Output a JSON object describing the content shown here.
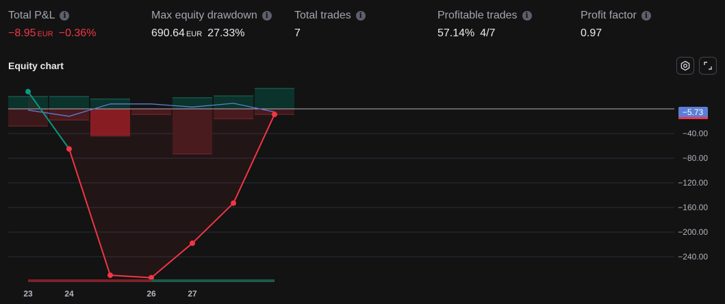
{
  "stats": [
    {
      "title": "Total P&L",
      "value": "−8.95",
      "currency": "EUR",
      "extra": "−0.36%",
      "negative": true
    },
    {
      "title": "Max equity drawdown",
      "value": "690.64",
      "currency": "EUR",
      "extra": "27.33%",
      "negative": false
    },
    {
      "title": "Total trades",
      "value": "7",
      "currency": "",
      "extra": "",
      "negative": false
    },
    {
      "title": "Profitable trades",
      "value": "57.14%",
      "currency": "",
      "extra": "4/7",
      "negative": false
    },
    {
      "title": "Profit factor",
      "value": "0.97",
      "currency": "",
      "extra": "",
      "negative": false
    }
  ],
  "info_icon": "info-icon",
  "chart_title": "Equity chart",
  "buttons": {
    "settings": "settings-icon",
    "expand": "expand-icon"
  },
  "colors": {
    "negative": "#f23645",
    "positive": "#089981",
    "benchmark": "#5b7fd6",
    "price_tag": "#5b7fd6"
  },
  "chart_data": {
    "type": "line",
    "x_ticks": [
      {
        "value": 23,
        "label": "23"
      },
      {
        "value": 24,
        "label": "24"
      },
      {
        "value": 26,
        "label": "26"
      },
      {
        "value": 27,
        "label": "27"
      }
    ],
    "y_ticks": [
      -40,
      -80,
      -120,
      -160,
      -200,
      -240
    ],
    "y_tick_labels": [
      "−40.00",
      "−80.00",
      "−120.00",
      "−160.00",
      "−200.00",
      "−240.00"
    ],
    "ylim": [
      -275,
      30
    ],
    "equity": [
      {
        "x": 0,
        "y": 28
      },
      {
        "x": 1,
        "y": -65
      },
      {
        "x": 2,
        "y": -270
      },
      {
        "x": 3,
        "y": -274
      },
      {
        "x": 4,
        "y": -218
      },
      {
        "x": 5,
        "y": -153
      },
      {
        "x": 6,
        "y": -9
      }
    ],
    "benchmark": [
      -2,
      -12,
      8,
      8,
      3,
      9,
      -5
    ],
    "bars": [
      {
        "run_up": 20,
        "drawdown": -28
      },
      {
        "run_up": 20,
        "drawdown": -18
      },
      {
        "run_up": 16,
        "drawdown": -44
      },
      {
        "run_up": 0,
        "drawdown": -9
      },
      {
        "run_up": 18,
        "drawdown": -73
      },
      {
        "run_up": 21,
        "drawdown": -16
      },
      {
        "run_up": 33,
        "drawdown": -9
      }
    ],
    "zero_line": 0,
    "last_value_label": "−5.73",
    "period_segments": [
      {
        "from": 0,
        "to": 3,
        "trend": "negative"
      },
      {
        "from": 3,
        "to": 6,
        "trend": "positive"
      }
    ]
  }
}
